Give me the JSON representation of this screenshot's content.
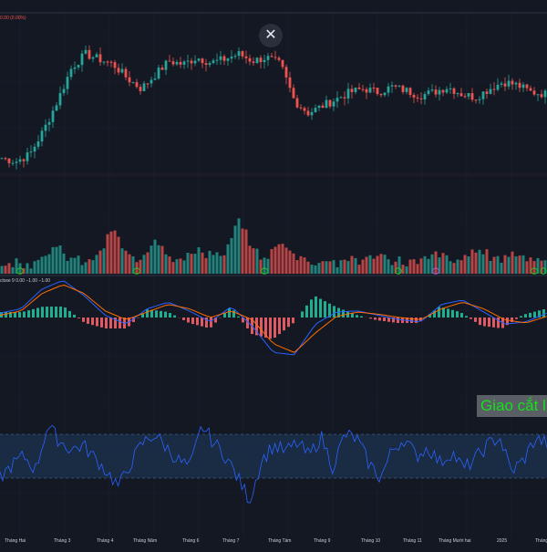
{
  "toolbar": {
    "close_icon": "close-icon",
    "close_glyph": "✕"
  },
  "legend": {
    "price_info": "0.00 (0.00%)",
    "macd_info": "close 9  0.00  −1.00  −1.00"
  },
  "annotation": {
    "cross_label": "Giao cắt l"
  },
  "colors": {
    "background": "#141823",
    "up": "#26a69a",
    "down": "#ef5350",
    "macd_line": "#2962ff",
    "signal_line": "#ff6d00",
    "rsi_line": "#2962ff",
    "rsi_band": "#1c3553",
    "grid": "#1e2331",
    "signal_marker": "#26c41e"
  },
  "chart_data": [
    {
      "type": "candlestick",
      "pane": "price",
      "x_axis": [
        "Tháng Hai",
        "Tháng 3",
        "Tháng 4",
        "Tháng Năm",
        "Tháng 6",
        "Tháng 7",
        "Tháng Tám",
        "Tháng 9",
        "Tháng 10",
        "Tháng 11",
        "Tháng Mười hai",
        "2025",
        "Tháng 2"
      ],
      "close_profile": [
        22,
        20,
        24,
        38,
        55,
        74,
        82,
        79,
        76,
        68,
        62,
        70,
        78,
        76,
        80,
        77,
        79,
        82,
        78,
        80,
        76,
        55,
        48,
        52,
        56,
        60,
        62,
        60,
        63,
        61,
        58,
        60,
        63,
        59,
        57,
        62,
        66,
        64,
        60,
        59
      ]
    },
    {
      "type": "bar",
      "pane": "volume",
      "values_profile": [
        3,
        5,
        4,
        8,
        12,
        6,
        5,
        9,
        22,
        7,
        5,
        18,
        8,
        6,
        10,
        9,
        7,
        26,
        12,
        6,
        15,
        9,
        5,
        6,
        4,
        7,
        5,
        8,
        6,
        5,
        4,
        9,
        6,
        5,
        12,
        8,
        6,
        10,
        7,
        5
      ],
      "signal_markers": [
        "Tháng 2",
        "Tháng Năm",
        "Tháng Tám",
        "Tháng 10",
        "Tháng Mười hai",
        "2025",
        "Tháng 2"
      ]
    },
    {
      "type": "line",
      "pane": "macd",
      "series": [
        {
          "values": [
            0.4,
            0.8,
            2.6,
            3.4,
            2.0,
            0.2,
            -0.6,
            0.8,
            1.4,
            0.6,
            -0.4,
            1.0,
            -0.8,
            -3.2,
            -3.4,
            -0.6,
            0.5,
            0.6,
            0.2,
            -0.2,
            -0.4,
            1.2,
            1.6,
            0.5,
            -0.6,
            -0.4,
            0.4
          ]
        },
        {
          "values": [
            0.2,
            0.6,
            2.2,
            3.0,
            2.2,
            0.6,
            -0.2,
            0.5,
            1.2,
            0.8,
            0.0,
            0.6,
            -0.2,
            -2.4,
            -3.2,
            -1.4,
            0.1,
            0.5,
            0.3,
            0.0,
            -0.2,
            0.8,
            1.4,
            0.8,
            -0.2,
            -0.5,
            0.1
          ]
        }
      ],
      "histogram_profile": [
        0.2,
        0.2,
        0.4,
        0.4,
        -0.2,
        -0.4,
        -0.4,
        0.3,
        0.2,
        -0.2,
        -0.4,
        0.4,
        -0.6,
        -0.8,
        -0.2,
        0.8,
        0.4,
        0.1,
        -0.1,
        -0.2,
        -0.2,
        0.4,
        0.2,
        -0.3,
        -0.4,
        0.1,
        0.3
      ]
    },
    {
      "type": "line",
      "pane": "rsi",
      "band": [
        30,
        70
      ],
      "values_profile": [
        30,
        42,
        50,
        38,
        78,
        64,
        56,
        60,
        48,
        36,
        22,
        44,
        62,
        70,
        58,
        46,
        40,
        78,
        62,
        50,
        30,
        10,
        46,
        60,
        54,
        62,
        50,
        68,
        40,
        70,
        66,
        44,
        30,
        56,
        66,
        50,
        58,
        44,
        54,
        38,
        48,
        60,
        68,
        36,
        46,
        66,
        62
      ]
    }
  ]
}
